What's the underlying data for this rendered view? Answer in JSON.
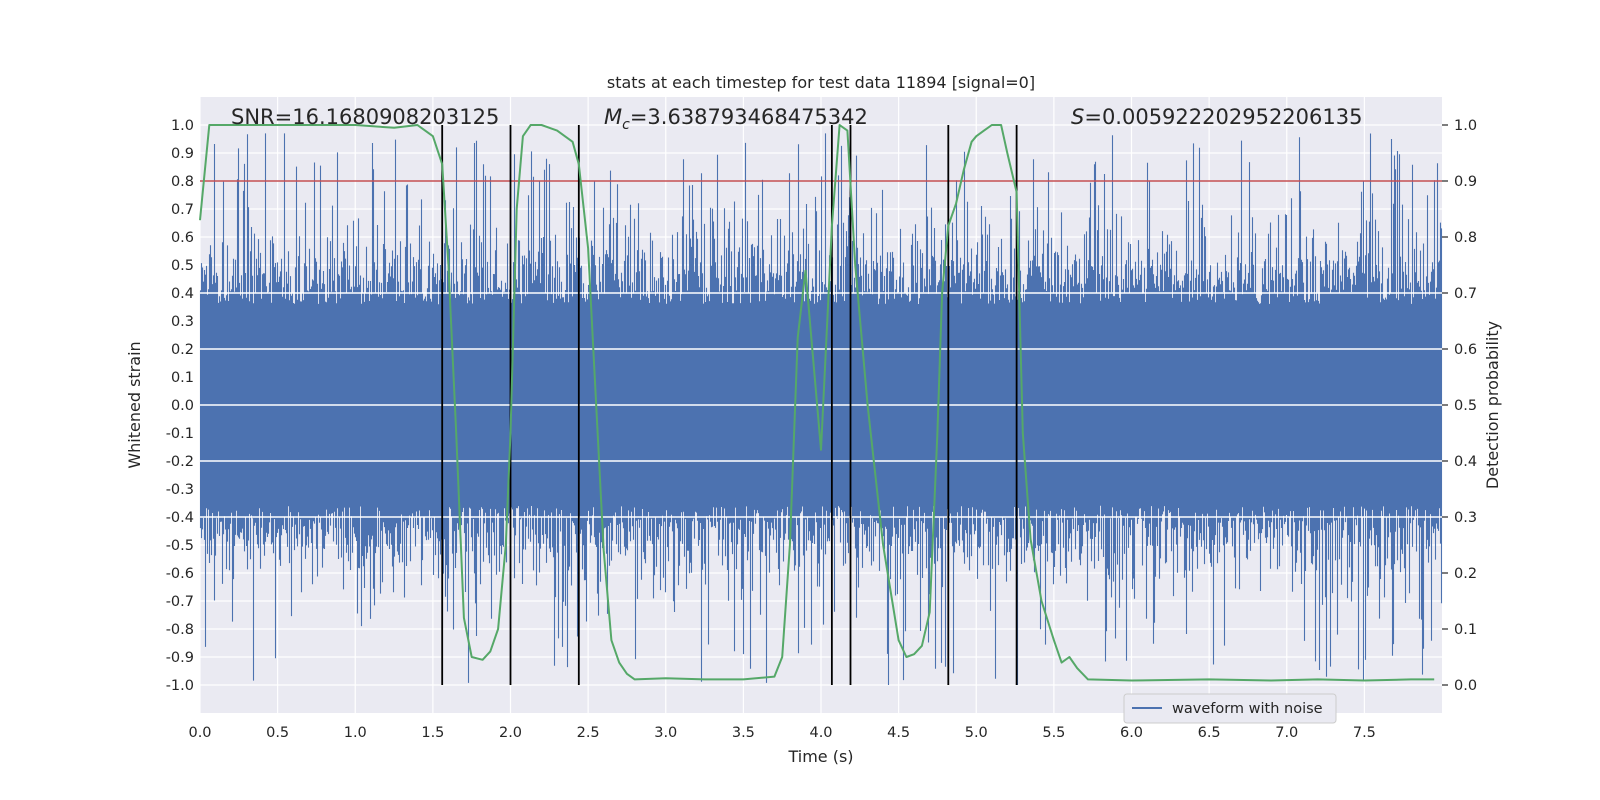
{
  "chart_data": {
    "type": "line",
    "title": "stats at each timestep for test data 11894 [signal=0]",
    "xlabel": "Time (s)",
    "ylabel": "Whitened strain",
    "ylabel_right": "Detection probability",
    "xlim": [
      0.0,
      8.0
    ],
    "ylim": [
      -1.1,
      1.1
    ],
    "ylim_right": [
      -0.05,
      1.05
    ],
    "x_ticks": [
      "0.0",
      "0.5",
      "1.0",
      "1.5",
      "2.0",
      "2.5",
      "3.0",
      "3.5",
      "4.0",
      "4.5",
      "5.0",
      "5.5",
      "6.0",
      "6.5",
      "7.0",
      "7.5"
    ],
    "y_ticks": [
      "1.0",
      "0.9",
      "0.8",
      "0.7",
      "0.6",
      "0.5",
      "0.4",
      "0.3",
      "0.2",
      "0.1",
      "0.0",
      "-0.1",
      "-0.2",
      "-0.3",
      "-0.4",
      "-0.5",
      "-0.6",
      "-0.7",
      "-0.8",
      "-0.9",
      "-1.0"
    ],
    "y_ticks_right": [
      "1.0",
      "0.9",
      "0.8",
      "0.7",
      "0.6",
      "0.5",
      "0.4",
      "0.3",
      "0.2",
      "0.1",
      "0.0"
    ],
    "annotations": {
      "snr": "SNR=16.1680908203125",
      "mc_symbol": "M",
      "mc_sub": "c",
      "mc_value": "=3.638793468475342",
      "s_symbol": "S",
      "s_value": "=0.005922202952206135"
    },
    "legend": "waveform with noise",
    "threshold": {
      "name": "detection threshold",
      "value": 0.9
    },
    "vlines": [
      1.56,
      2.0,
      2.44,
      4.07,
      4.19,
      4.82,
      5.26
    ],
    "series": [
      {
        "name": "waveform with noise",
        "axis": "left",
        "kind": "noise",
        "sample_rate_hz": 2048,
        "duration_s": 8,
        "amplitude_range": [
          -1.0,
          0.97
        ]
      },
      {
        "name": "Detection probability",
        "axis": "right",
        "x": [
          0.0,
          0.06,
          0.12,
          0.25,
          0.5,
          0.75,
          1.0,
          1.25,
          1.4,
          1.5,
          1.56,
          1.6,
          1.65,
          1.7,
          1.75,
          1.82,
          1.87,
          1.92,
          1.97,
          2.0,
          2.04,
          2.08,
          2.13,
          2.2,
          2.3,
          2.4,
          2.44,
          2.5,
          2.6,
          2.65,
          2.7,
          2.75,
          2.8,
          3.0,
          3.25,
          3.5,
          3.7,
          3.75,
          3.8,
          3.85,
          3.9,
          4.0,
          4.07,
          4.12,
          4.17,
          4.22,
          4.3,
          4.4,
          4.5,
          4.55,
          4.6,
          4.65,
          4.7,
          4.75,
          4.78,
          4.82,
          4.87,
          4.92,
          4.97,
          5.0,
          5.05,
          5.1,
          5.16,
          5.2,
          5.26,
          5.3,
          5.35,
          5.42,
          5.5,
          5.55,
          5.6,
          5.65,
          5.72,
          6.0,
          6.5,
          6.9,
          7.2,
          7.5,
          7.8,
          7.95
        ],
        "values": [
          0.83,
          1.0,
          1.0,
          1.0,
          1.0,
          1.0,
          1.0,
          0.995,
          1.0,
          0.98,
          0.93,
          0.75,
          0.45,
          0.12,
          0.05,
          0.045,
          0.06,
          0.1,
          0.25,
          0.45,
          0.85,
          0.98,
          1.0,
          1.0,
          0.99,
          0.97,
          0.93,
          0.78,
          0.24,
          0.08,
          0.04,
          0.02,
          0.01,
          0.012,
          0.01,
          0.01,
          0.015,
          0.05,
          0.25,
          0.62,
          0.74,
          0.42,
          0.82,
          1.0,
          0.99,
          0.75,
          0.5,
          0.25,
          0.08,
          0.05,
          0.055,
          0.07,
          0.13,
          0.45,
          0.7,
          0.82,
          0.86,
          0.92,
          0.97,
          0.98,
          0.99,
          1.0,
          1.0,
          0.95,
          0.88,
          0.45,
          0.26,
          0.15,
          0.08,
          0.04,
          0.05,
          0.03,
          0.01,
          0.008,
          0.01,
          0.008,
          0.01,
          0.008,
          0.01,
          0.01
        ]
      }
    ]
  }
}
